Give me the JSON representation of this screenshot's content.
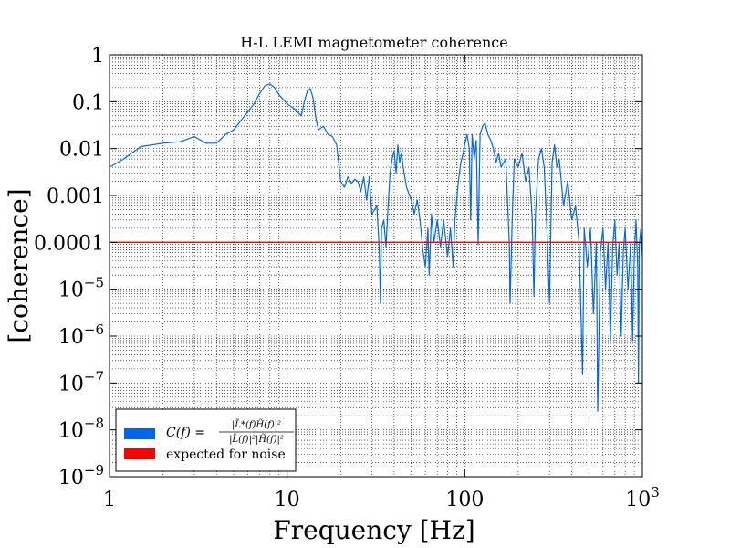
{
  "chart_data": {
    "type": "line",
    "title": "H-L LEMI magnetometer coherence",
    "xlabel": "Frequency [Hz]",
    "ylabel": "[coherence]",
    "xscale": "log",
    "yscale": "log",
    "xlim": [
      1,
      1000
    ],
    "ylim": [
      1e-09,
      1
    ],
    "grid": true,
    "legend_position": "lower-left",
    "x_ticks": [
      {
        "value": 1,
        "base": "1",
        "exp": ""
      },
      {
        "value": 10,
        "base": "10",
        "exp": ""
      },
      {
        "value": 100,
        "base": "100",
        "exp": ""
      },
      {
        "value": 1000,
        "base": "10",
        "exp": "3"
      }
    ],
    "y_ticks": [
      {
        "value": 1,
        "base": "1",
        "exp": ""
      },
      {
        "value": 0.1,
        "base": "0.1",
        "exp": ""
      },
      {
        "value": 0.01,
        "base": "0.01",
        "exp": ""
      },
      {
        "value": 0.001,
        "base": "0.001",
        "exp": ""
      },
      {
        "value": 0.0001,
        "base": "0.0001",
        "exp": ""
      },
      {
        "value": 1e-05,
        "base": "10",
        "exp": "−5"
      },
      {
        "value": 1e-06,
        "base": "10",
        "exp": "−6"
      },
      {
        "value": 1e-07,
        "base": "10",
        "exp": "−7"
      },
      {
        "value": 1e-08,
        "base": "10",
        "exp": "−8"
      },
      {
        "value": 1e-09,
        "base": "10",
        "exp": "−9"
      }
    ],
    "series": [
      {
        "name": "C(f) = |L̃*(f)H̃(f)|² / (|L̃(f)|²|H̃(f)|²)",
        "color": "#0066ee",
        "points": [
          [
            1.0,
            0.004
          ],
          [
            1.2,
            0.006
          ],
          [
            1.5,
            0.011
          ],
          [
            2.0,
            0.013
          ],
          [
            2.5,
            0.014
          ],
          [
            3.0,
            0.018
          ],
          [
            3.5,
            0.013
          ],
          [
            4.0,
            0.013
          ],
          [
            4.5,
            0.02
          ],
          [
            5.0,
            0.025
          ],
          [
            5.5,
            0.04
          ],
          [
            6.0,
            0.06
          ],
          [
            6.5,
            0.09
          ],
          [
            7.0,
            0.15
          ],
          [
            7.5,
            0.22
          ],
          [
            8.0,
            0.24
          ],
          [
            8.5,
            0.2
          ],
          [
            9.0,
            0.14
          ],
          [
            10.0,
            0.09
          ],
          [
            11.0,
            0.07
          ],
          [
            12.0,
            0.05
          ],
          [
            12.5,
            0.1
          ],
          [
            13.0,
            0.17
          ],
          [
            13.5,
            0.19
          ],
          [
            14.0,
            0.12
          ],
          [
            14.5,
            0.045
          ],
          [
            15.0,
            0.025
          ],
          [
            16.0,
            0.03
          ],
          [
            17.0,
            0.02
          ],
          [
            18.0,
            0.018
          ],
          [
            19.0,
            0.012
          ],
          [
            20.0,
            0.002
          ],
          [
            21.0,
            0.0015
          ],
          [
            22.0,
            0.0025
          ],
          [
            23.0,
            0.0018
          ],
          [
            24.0,
            0.0022
          ],
          [
            25.0,
            0.002
          ],
          [
            26.0,
            0.0012
          ],
          [
            27.0,
            0.0025
          ],
          [
            28.0,
            0.0008
          ],
          [
            29.0,
            0.0025
          ],
          [
            30.0,
            0.0004
          ],
          [
            32.0,
            0.0006
          ],
          [
            33.0,
            7e-05
          ],
          [
            33.5,
            5e-06
          ],
          [
            34.0,
            0.0002
          ],
          [
            35.0,
            0.0003
          ],
          [
            36.0,
            8e-05
          ],
          [
            37.0,
            0.0006
          ],
          [
            38.0,
            0.003
          ],
          [
            39.0,
            0.006
          ],
          [
            40.0,
            0.009
          ],
          [
            41.0,
            0.003
          ],
          [
            42.0,
            0.012
          ],
          [
            43.0,
            0.005
          ],
          [
            44.0,
            0.008
          ],
          [
            45.0,
            0.004
          ],
          [
            47.0,
            0.0015
          ],
          [
            50.0,
            0.0008
          ],
          [
            52.0,
            0.0004
          ],
          [
            54.0,
            0.0008
          ],
          [
            56.0,
            0.0003
          ],
          [
            58.0,
            7e-05
          ],
          [
            60.0,
            3e-05
          ],
          [
            62.0,
            0.0002
          ],
          [
            63.0,
            2e-05
          ],
          [
            65.0,
            0.0004
          ],
          [
            67.0,
            0.0001
          ],
          [
            70.0,
            0.0003
          ],
          [
            73.0,
            8e-05
          ],
          [
            76.0,
            0.0003
          ],
          [
            80.0,
            5e-05
          ],
          [
            83.0,
            0.0002
          ],
          [
            86.0,
            3e-05
          ],
          [
            88.0,
            0.0003
          ],
          [
            90.0,
            0.0008
          ],
          [
            92.0,
            0.002
          ],
          [
            95.0,
            0.005
          ],
          [
            98.0,
            0.008
          ],
          [
            100.0,
            0.012
          ],
          [
            103.0,
            0.02
          ],
          [
            106.0,
            0.01
          ],
          [
            108.0,
            0.0003
          ],
          [
            110.0,
            0.02
          ],
          [
            113.0,
            0.006
          ],
          [
            116.0,
            0.015
          ],
          [
            119.0,
            9e-05
          ],
          [
            122.0,
            0.02
          ],
          [
            126.0,
            0.03
          ],
          [
            130.0,
            0.035
          ],
          [
            135.0,
            0.02
          ],
          [
            140.0,
            0.015
          ],
          [
            145.0,
            0.01
          ],
          [
            150.0,
            0.005
          ],
          [
            155.0,
            0.008
          ],
          [
            160.0,
            0.004
          ],
          [
            170.0,
            0.006
          ],
          [
            178.0,
            0.0001
          ],
          [
            180.0,
            5e-06
          ],
          [
            185.0,
            0.0003
          ],
          [
            190.0,
            0.006
          ],
          [
            200.0,
            0.004
          ],
          [
            210.0,
            0.008
          ],
          [
            220.0,
            0.002
          ],
          [
            230.0,
            0.004
          ],
          [
            240.0,
            0.0003
          ],
          [
            245.0,
            7e-06
          ],
          [
            250.0,
            0.0004
          ],
          [
            260.0,
            0.006
          ],
          [
            270.0,
            0.01
          ],
          [
            280.0,
            0.004
          ],
          [
            290.0,
            0.0002
          ],
          [
            300.0,
            5e-06
          ],
          [
            310.0,
            0.005
          ],
          [
            320.0,
            0.012
          ],
          [
            330.0,
            0.004
          ],
          [
            340.0,
            0.006
          ],
          [
            360.0,
            0.0006
          ],
          [
            380.0,
            0.002
          ],
          [
            400.0,
            0.0003
          ],
          [
            420.0,
            0.0006
          ],
          [
            440.0,
            0.0001
          ],
          [
            460.0,
            1.5e-07
          ],
          [
            470.0,
            0.0002
          ],
          [
            490.0,
            3e-05
          ],
          [
            510.0,
            0.0002
          ],
          [
            530.0,
            3e-06
          ],
          [
            550.0,
            0.0001
          ],
          [
            560.0,
            2.5e-08
          ],
          [
            580.0,
            6e-05
          ],
          [
            600.0,
            0.0002
          ],
          [
            620.0,
            1e-05
          ],
          [
            640.0,
            0.0001
          ],
          [
            660.0,
            8e-07
          ],
          [
            680.0,
            8e-05
          ],
          [
            700.0,
            0.0003
          ],
          [
            720.0,
            2e-05
          ],
          [
            740.0,
            0.0001
          ],
          [
            760.0,
            1e-06
          ],
          [
            780.0,
            6e-05
          ],
          [
            800.0,
            0.0002
          ],
          [
            830.0,
            1e-05
          ],
          [
            860.0,
            0.0001
          ],
          [
            880.0,
            8e-07
          ],
          [
            900.0,
            5e-05
          ],
          [
            920.0,
            0.0003
          ],
          [
            940.0,
            3e-05
          ],
          [
            950.0,
            1e-07
          ],
          [
            960.0,
            8e-05
          ],
          [
            980.0,
            0.0002
          ],
          [
            1000.0,
            5e-05
          ]
        ]
      },
      {
        "name": "expected for noise",
        "color": "#ff0000",
        "points": [
          [
            1,
            0.0001
          ],
          [
            1000,
            0.0001
          ]
        ]
      }
    ]
  },
  "legend": {
    "entries": [
      {
        "label": "expected for noise",
        "color": "#ff0000"
      }
    ],
    "formula": {
      "lhs": "C(f) =",
      "numerator": "|L̃*(f)H̃(f)|²",
      "denominator": "|L̃(f)|²|H̃(f)|²"
    },
    "formula_color": "#0066ee"
  }
}
